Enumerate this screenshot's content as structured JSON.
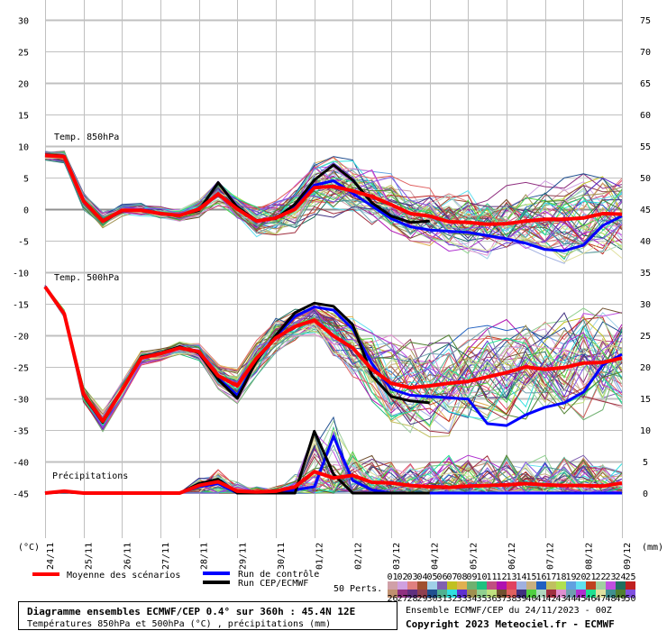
{
  "chart_data": {
    "type": "line",
    "title": "Diagramme ensembles ECMWF/CEP 0.4° sur 360h : 45.4N 12E",
    "subtitle": "Températures 850hPa et 500hPa (°C) , précipitations (mm)",
    "run_info": "Ensemble ECMWF/CEP du 24/11/2023 - 00Z",
    "copyright": "Copyright 2023 Meteociel.fr - ECMWF",
    "left_unit": "(°C)",
    "right_unit": "(mm)",
    "left_ticks": [
      30,
      25,
      20,
      15,
      10,
      5,
      0,
      -5,
      -10,
      -15,
      -20,
      -25,
      -30,
      -35,
      -40,
      -45
    ],
    "right_ticks": [
      75,
      70,
      65,
      60,
      55,
      50,
      45,
      40,
      35,
      30,
      25,
      20,
      15,
      10,
      5,
      0
    ],
    "ylim_left": [
      -45,
      30
    ],
    "ylim_right": [
      0,
      75
    ],
    "x_labels": [
      "24/11",
      "25/11",
      "26/11",
      "27/11",
      "28/11",
      "29/11",
      "30/11",
      "01/12",
      "02/12",
      "03/12",
      "04/12",
      "05/12",
      "06/12",
      "07/12",
      "08/12",
      "09/12"
    ],
    "time_step_hours": 12,
    "grid": true,
    "panels": {
      "t850": {
        "label": "Temp. 850hPa",
        "mean": [
          8.5,
          8.3,
          1.3,
          -1.9,
          -0.2,
          -0.2,
          -0.7,
          -1.0,
          0,
          2.4,
          0,
          -1.9,
          -1.4,
          0,
          3.4,
          3.6,
          2.9,
          2.0,
          0.7,
          -0.7,
          -1.1,
          -2.0,
          -2.1,
          -2.4,
          -2.3,
          -1.9,
          -1.6,
          -1.6,
          -1.4,
          -0.7,
          -0.8
        ],
        "control": [
          8.5,
          8.3,
          1.3,
          -1.8,
          -0.3,
          -0.2,
          -0.8,
          -1.0,
          0,
          2.3,
          0,
          -1.8,
          -1.5,
          0.5,
          3.8,
          4.5,
          2.5,
          0.5,
          -1.5,
          -2.8,
          -3.3,
          -3.5,
          -3.7,
          -4.2,
          -4.7,
          -5.4,
          -6.4,
          -6.6,
          -5.7,
          -2.6,
          -1.1
        ],
        "operational": [
          8.6,
          8.4,
          1.2,
          -2.0,
          -0.3,
          -0.1,
          -0.7,
          -1.0,
          -0.2,
          4.2,
          0.3,
          -1.8,
          -1.5,
          0.8,
          4.6,
          7.0,
          4.6,
          1.0,
          -1.1,
          -2.1,
          -1.9
        ],
        "ensemble_spread": [
          0.8,
          0.8,
          1,
          1,
          0.8,
          0.8,
          0.8,
          0.8,
          1,
          1.5,
          1.5,
          2,
          2.5,
          3,
          3.5,
          3.5,
          3.5,
          3.5,
          3.5,
          3.5,
          3.5,
          4,
          4,
          4,
          4.5,
          4.5,
          4.5,
          5,
          5,
          5,
          5
        ]
      },
      "t500": {
        "label": "Temp. 500hPa",
        "mean": [
          -12.3,
          -16.6,
          -29.3,
          -33.6,
          -28.7,
          -23.6,
          -22.9,
          -22,
          -22.6,
          -26.4,
          -28,
          -23.6,
          -20.4,
          -18.6,
          -17.6,
          -20.1,
          -22,
          -25.4,
          -27.6,
          -28.3,
          -28,
          -27.6,
          -27.3,
          -26.6,
          -25.9,
          -25,
          -25.4,
          -25.1,
          -24.4,
          -24.3,
          -23.6
        ],
        "control": [
          -12.3,
          -16.6,
          -29.4,
          -33.7,
          -28.7,
          -23.5,
          -22.9,
          -22,
          -22.7,
          -26.8,
          -29.5,
          -24,
          -20.2,
          -17,
          -15.5,
          -16,
          -19,
          -24.5,
          -28.5,
          -29.5,
          -29.7,
          -29.9,
          -30.1,
          -34,
          -34.3,
          -32.6,
          -31.4,
          -30.7,
          -29,
          -24.7,
          -23
        ],
        "operational": [
          -12.3,
          -16.6,
          -29.5,
          -33.8,
          -28.7,
          -23.4,
          -22.8,
          -21.8,
          -22.8,
          -27,
          -30,
          -24,
          -20,
          -16.4,
          -14.9,
          -15.4,
          -18.3,
          -26.4,
          -29.7,
          -30.4,
          -30.7
        ],
        "ensemble_spread": [
          0.3,
          0.5,
          1,
          1.2,
          1,
          0.8,
          0.8,
          0.8,
          1,
          1.5,
          2,
          2,
          2.5,
          2,
          2,
          3,
          4,
          5,
          6,
          6,
          6,
          6,
          6,
          6,
          6,
          6.5,
          6.5,
          6.5,
          7,
          7,
          7
        ]
      },
      "precip": {
        "label": "Précipitations",
        "mean": [
          0,
          0.3,
          0,
          0,
          0,
          0,
          0,
          0,
          1.2,
          1.8,
          0.3,
          0.2,
          0.3,
          1.0,
          3.4,
          2.4,
          2.8,
          1.7,
          1.6,
          1.2,
          1.0,
          0.9,
          1.1,
          1.2,
          1.3,
          1.5,
          1.3,
          1.2,
          1.2,
          1.1,
          1.6
        ],
        "control": [
          0,
          0.2,
          0,
          0,
          0,
          0,
          0,
          0,
          1,
          1.5,
          0,
          0,
          0,
          0.5,
          1,
          9,
          2,
          0.5,
          0,
          0,
          0,
          0,
          0,
          0,
          0,
          0,
          0,
          0,
          0,
          0,
          0
        ],
        "operational": [
          0,
          0.2,
          0,
          0,
          0,
          0,
          0,
          0,
          1.5,
          2.2,
          0,
          0,
          0,
          0,
          9.8,
          3,
          0,
          0,
          0,
          0,
          0
        ],
        "ensemble_max": [
          0,
          0.5,
          0,
          0,
          0,
          0,
          0,
          0,
          3,
          4,
          2,
          1,
          1,
          3,
          10,
          12,
          8,
          6,
          5,
          5,
          5,
          6,
          6,
          6,
          6,
          6,
          6,
          6,
          6,
          5,
          5
        ]
      }
    },
    "legend": {
      "mean": {
        "label": "Moyenne des scénarios",
        "color": "#ff0000"
      },
      "control": {
        "label": "Run de contrôle",
        "color": "#0000ff"
      },
      "operational": {
        "label": "Run CEP/ECMWF",
        "color": "#000000"
      },
      "perturbations_label": "50 Perts.",
      "members": [
        "01",
        "02",
        "03",
        "04",
        "05",
        "06",
        "07",
        "08",
        "09",
        "10",
        "11",
        "12",
        "13",
        "14",
        "15",
        "16",
        "17",
        "18",
        "19",
        "20",
        "21",
        "22",
        "23",
        "24",
        "25",
        "26",
        "27",
        "28",
        "29",
        "30",
        "31",
        "32",
        "33",
        "34",
        "35",
        "36",
        "37",
        "38",
        "39",
        "40",
        "41",
        "42",
        "43",
        "44",
        "45",
        "46",
        "47",
        "48",
        "49",
        "50"
      ],
      "member_colors": [
        "#d0a0a8",
        "#d0a0e0",
        "#e08080",
        "#a05030",
        "#a0d0e8",
        "#8060b0",
        "#c0c020",
        "#e0b050",
        "#70b070",
        "#20c080",
        "#c05080",
        "#b010b0",
        "#e04060",
        "#a0b0e0",
        "#c8b080",
        "#2060c0",
        "#c0c060",
        "#b0e050",
        "#60a0e0",
        "#60e0f0",
        "#c04020",
        "#a0d0a0",
        "#c050e0",
        "#207060",
        "#c02020",
        "#c09070",
        "#903080",
        "#603080",
        "#904050",
        "#205090",
        "#50b090",
        "#30e0e0",
        "#6030d0",
        "#a09050",
        "#90d090",
        "#c0e080",
        "#705030",
        "#e06060",
        "#403080",
        "#50d040",
        "#b0d8c0",
        "#a03040",
        "#e090d0",
        "#70a0b0",
        "#b030d0",
        "#20e090",
        "#e0e0a0",
        "#409090",
        "#508030",
        "#8050e0"
      ]
    }
  }
}
